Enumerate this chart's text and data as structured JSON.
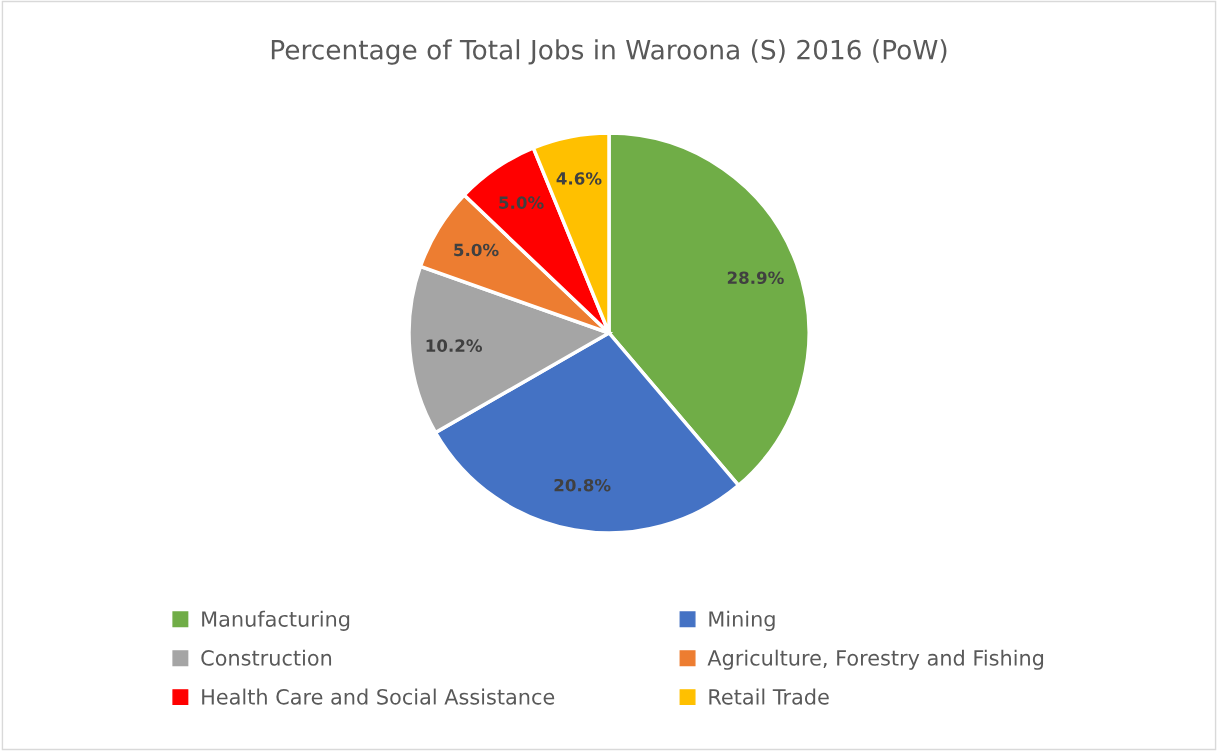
{
  "chart_data": {
    "type": "pie",
    "title": "Percentage of Total Jobs in Waroona (S) 2016 (PoW)",
    "categories": [
      "Manufacturing",
      "Mining",
      "Construction",
      "Agriculture, Forestry and Fishing",
      "Health Care and Social Assistance",
      "Retail Trade"
    ],
    "values": [
      28.9,
      20.8,
      10.2,
      5.0,
      5.0,
      4.6
    ],
    "value_labels": [
      "28.9%",
      "20.8%",
      "10.2%",
      "5.0%",
      "5.0%",
      "4.6%"
    ],
    "colors": [
      "#70ad47",
      "#4472c4",
      "#a5a5a5",
      "#ed7d31",
      "#ff0000",
      "#ffc000"
    ],
    "legend": "bottom"
  }
}
